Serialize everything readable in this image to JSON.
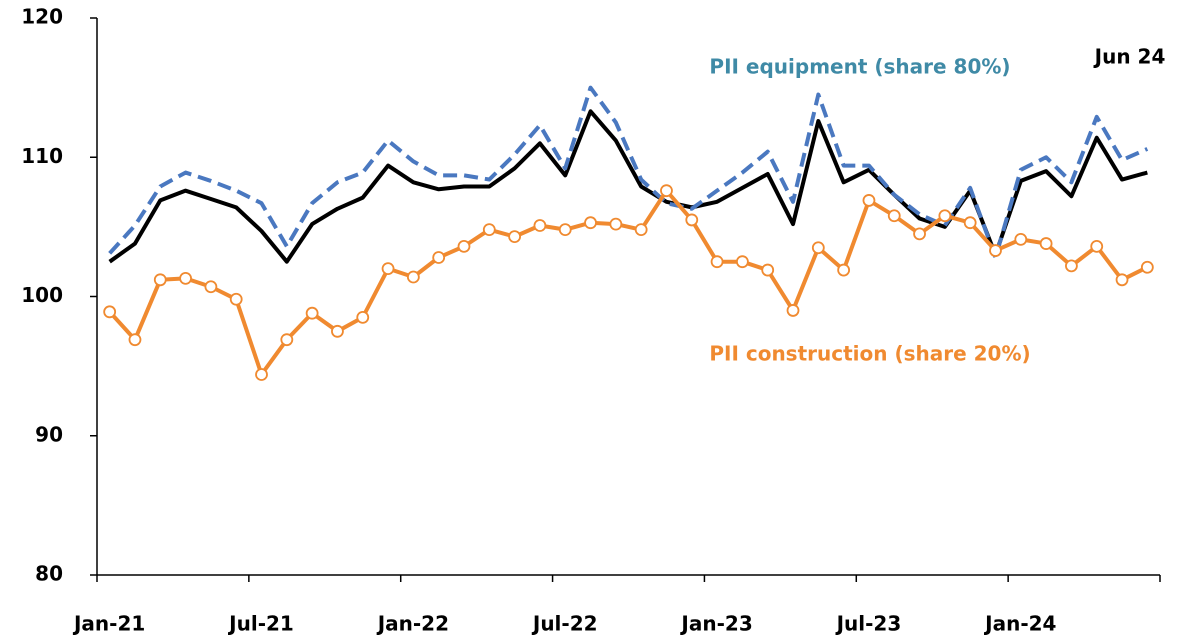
{
  "chart_data": {
    "type": "line",
    "categories": [
      "Jan-21",
      null,
      null,
      null,
      null,
      null,
      "Jul-21",
      null,
      null,
      null,
      null,
      null,
      "Jan-22",
      null,
      null,
      null,
      null,
      null,
      "Jul-22",
      null,
      null,
      null,
      null,
      null,
      "Jan-23",
      null,
      null,
      null,
      null,
      null,
      "Jul-23",
      null,
      null,
      null,
      null,
      null,
      "Jan-24",
      null,
      null,
      null,
      null,
      null
    ],
    "series": [
      {
        "color": "#000000",
        "values": [
          102.5,
          103.8,
          106.9,
          107.6,
          107.0,
          106.4,
          104.7,
          102.5,
          105.2,
          106.3,
          107.1,
          109.4,
          108.2,
          107.7,
          107.9,
          107.9,
          109.2,
          111.0,
          108.7,
          113.3,
          111.2,
          107.9,
          106.8,
          106.4,
          106.8,
          107.8,
          108.8,
          105.2,
          112.6,
          108.2,
          109.1,
          107.3,
          105.6,
          105.0,
          107.6,
          103.0,
          108.3,
          109.0,
          107.2,
          111.4,
          108.4,
          108.9
        ]
      },
      {
        "name": "PII equipment (share 80%)",
        "color": "#4a78c0",
        "label_color": "#3f8aa6",
        "dashed": true,
        "values": [
          103.1,
          105.1,
          107.9,
          108.9,
          108.3,
          107.6,
          106.7,
          103.6,
          106.7,
          108.2,
          108.9,
          111.2,
          109.7,
          108.7,
          108.7,
          108.4,
          110.2,
          112.3,
          109.2,
          115.0,
          112.5,
          108.4,
          106.7,
          106.3,
          107.6,
          108.9,
          110.4,
          106.8,
          114.5,
          109.4,
          109.4,
          107.3,
          105.9,
          105.1,
          107.8,
          102.8,
          109.1,
          110.0,
          108.2,
          112.9,
          109.8,
          110.6
        ]
      },
      {
        "name": "PII construction (share 20%)",
        "color": "#f08a30",
        "label_color": "#f08a30",
        "marker": "circle",
        "values": [
          98.9,
          96.9,
          101.2,
          101.3,
          100.7,
          99.8,
          94.4,
          96.9,
          98.8,
          97.5,
          98.5,
          102.0,
          101.4,
          102.8,
          103.6,
          104.8,
          104.3,
          105.1,
          104.8,
          105.3,
          105.2,
          104.8,
          107.6,
          105.5,
          102.5,
          102.5,
          101.9,
          99.0,
          103.5,
          101.9,
          106.9,
          105.8,
          104.5,
          105.8,
          105.3,
          103.3,
          104.1,
          103.8,
          102.2,
          103.6,
          101.2,
          102.1
        ]
      }
    ],
    "annotations": [
      "Jun 24"
    ],
    "ylim": [
      80,
      120
    ],
    "yticks": [
      80,
      90,
      100,
      110,
      120
    ]
  }
}
